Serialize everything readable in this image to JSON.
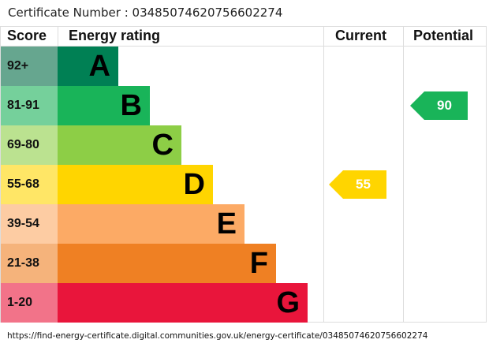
{
  "certificate": "Certificate Number : 03485074620756602274",
  "url": "https://find-energy-certificate.digital.communities.gov.uk/energy-certificate/03485074620756602274",
  "chart_data": {
    "type": "bar",
    "headers": {
      "score": "Score",
      "rating": "Energy rating",
      "current": "Current",
      "potential": "Potential"
    },
    "bands": [
      {
        "letter": "A",
        "range": "92+",
        "color": "#008054",
        "light": "#66a68f"
      },
      {
        "letter": "B",
        "range": "81-91",
        "color": "#19b459",
        "light": "#75d09b"
      },
      {
        "letter": "C",
        "range": "69-80",
        "color": "#8dce46",
        "light": "#bbe290"
      },
      {
        "letter": "D",
        "range": "55-68",
        "color": "#ffd500",
        "light": "#ffe666"
      },
      {
        "letter": "E",
        "range": "39-54",
        "color": "#fcaa65",
        "light": "#fdcca3"
      },
      {
        "letter": "F",
        "range": "21-38",
        "color": "#ef8023",
        "light": "#f5b37b"
      },
      {
        "letter": "G",
        "range": "1-20",
        "color": "#e9153b",
        "light": "#f27389"
      }
    ],
    "current": {
      "value": 55,
      "band": "D"
    },
    "potential": {
      "value": 90,
      "band": "B"
    }
  }
}
